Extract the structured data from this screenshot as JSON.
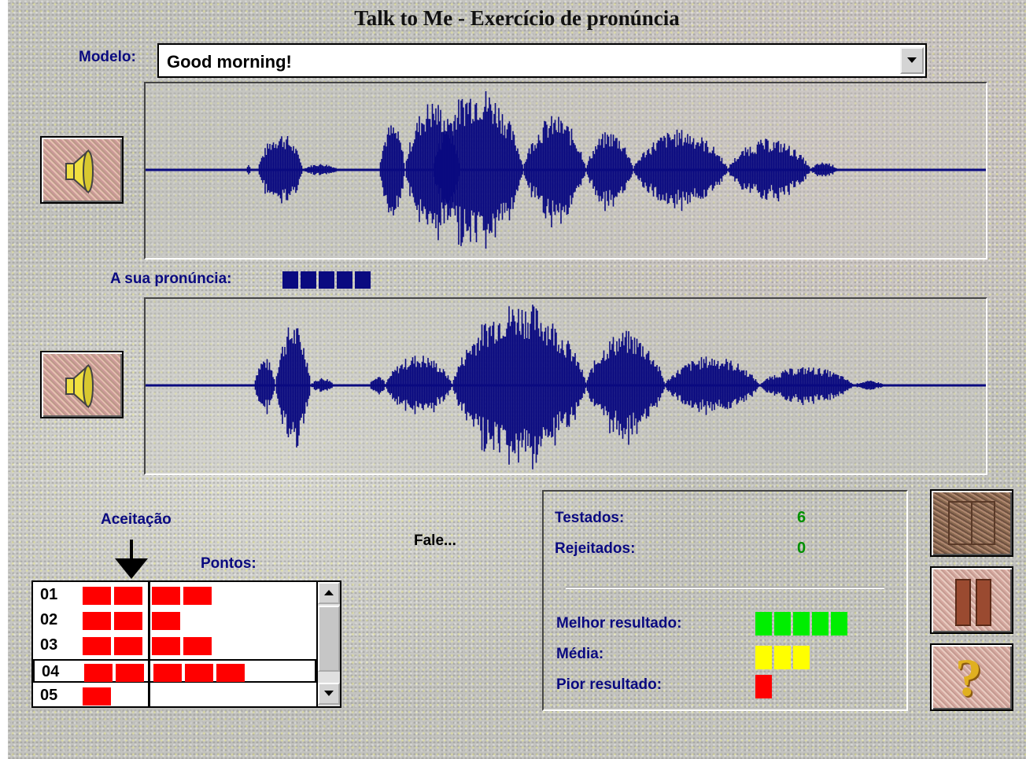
{
  "window": {
    "title": "Talk to Me - Exercício de pronúncia"
  },
  "model": {
    "label": "Modelo:",
    "selected": "Good morning!"
  },
  "pronunciation": {
    "label": "A sua pronúncia:",
    "score_blocks": 5,
    "score_color": "#0a0a80"
  },
  "acceptance": {
    "label": "Aceitação",
    "points_label": "Pontos:",
    "threshold_blocks": 2,
    "rows": [
      {
        "num": "01",
        "blocks": 4
      },
      {
        "num": "02",
        "blocks": 3
      },
      {
        "num": "03",
        "blocks": 4
      },
      {
        "num": "04",
        "blocks": 5,
        "selected": true
      },
      {
        "num": "05",
        "blocks": 1
      }
    ],
    "bar_color": "#ff0000"
  },
  "status": {
    "prompt": "Fale..."
  },
  "stats": {
    "tested_label": "Testados:",
    "tested_value": "6",
    "rejected_label": "Rejeitados:",
    "rejected_value": "0",
    "best_label": "Melhor resultado:",
    "best_blocks": 5,
    "best_color": "#00ee00",
    "average_label": "Média:",
    "average_blocks": 3,
    "average_color": "#ffff00",
    "worst_label": "Pior resultado:",
    "worst_blocks": 1,
    "worst_color": "#ff0000"
  },
  "icons": {
    "play_model": "speaker-icon",
    "play_user": "speaker-icon",
    "record": "record-icon",
    "pause": "pause-icon",
    "help": "question-mark-icon"
  },
  "colors": {
    "waveform": "#0a0a80"
  }
}
